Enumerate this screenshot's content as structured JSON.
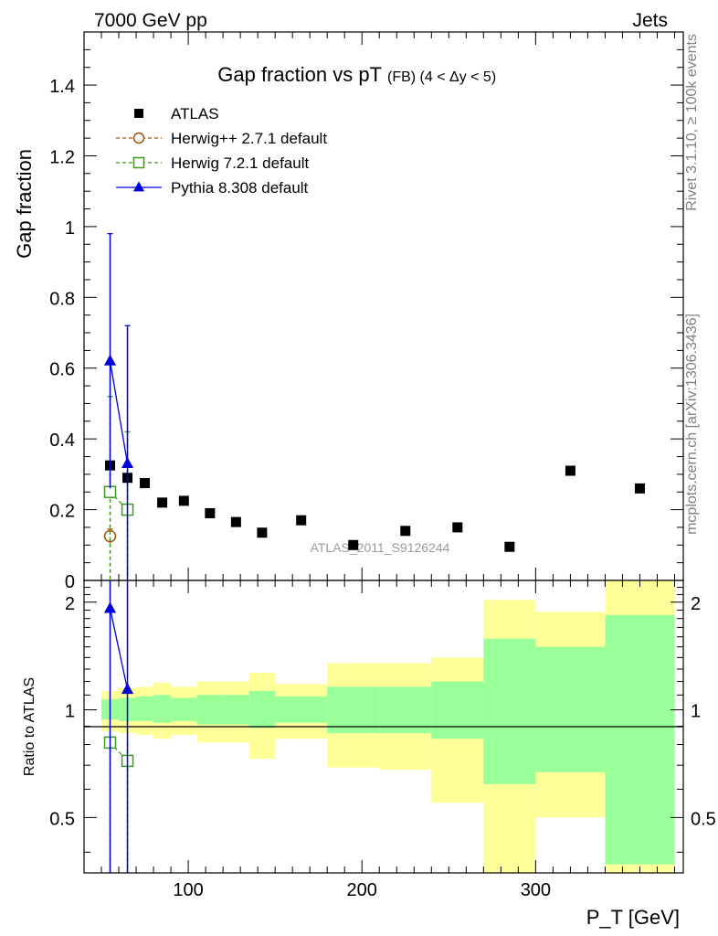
{
  "header": {
    "energy_label": "7000 GeV pp",
    "process_label": "Jets"
  },
  "side_labels": {
    "rivet": "Rivet 3.1.10, ≥ 100k events",
    "mcplots": "mcplots.cern.ch [arXiv:1306.3436]"
  },
  "watermark": "ATLAS_2011_S9126244",
  "chart_data": [
    {
      "type": "scatter",
      "title_main": "Gap fraction vs pT",
      "title_sub": "(FB)  (4 < Δy < 5)",
      "ylabel": "Gap fraction",
      "xlim": [
        40,
        385
      ],
      "ylim": [
        0,
        1.55
      ],
      "yticks": [
        {
          "v": 0,
          "label": "0"
        },
        {
          "v": 0.2,
          "label": "0.2"
        },
        {
          "v": 0.4,
          "label": "0.4"
        },
        {
          "v": 0.6,
          "label": "0.6"
        },
        {
          "v": 0.8,
          "label": "0.8"
        },
        {
          "v": 1.0,
          "label": "1"
        },
        {
          "v": 1.2,
          "label": "1.2"
        },
        {
          "v": 1.4,
          "label": "1.4"
        }
      ],
      "legend": [
        {
          "name": "ATLAS",
          "marker": "square-filled",
          "color": "#000000"
        },
        {
          "name": "Herwig++ 2.7.1 default",
          "marker": "circle-open",
          "color": "#a0520a"
        },
        {
          "name": "Herwig 7.2.1 default",
          "marker": "square-open",
          "color": "#3a9a1a"
        },
        {
          "name": "Pythia 8.308 default",
          "marker": "triangle-filled",
          "color": "#0000dd"
        }
      ],
      "series": [
        {
          "name": "ATLAS",
          "x": [
            55,
            65,
            75,
            85,
            97.5,
            112.5,
            127.5,
            142.5,
            165,
            195,
            225,
            255,
            285,
            320,
            360
          ],
          "y": [
            0.325,
            0.29,
            0.275,
            0.22,
            0.225,
            0.19,
            0.165,
            0.135,
            0.17,
            0.1,
            0.14,
            0.15,
            0.095,
            0.31,
            0.26
          ]
        },
        {
          "name": "Herwig++ 2.7.1 default",
          "x": [
            55
          ],
          "y": [
            0.125
          ],
          "err": [
            0.02
          ]
        },
        {
          "name": "Herwig 7.2.1 default",
          "x": [
            55,
            65
          ],
          "y": [
            0.25,
            0.2
          ],
          "err": [
            0.27,
            0.22
          ]
        },
        {
          "name": "Pythia 8.308 default",
          "x": [
            55,
            65
          ],
          "y": [
            0.62,
            0.33
          ],
          "err": [
            0.36,
            0.39
          ]
        }
      ]
    },
    {
      "type": "scatter",
      "ylabel": "Ratio to ATLAS",
      "xlabel": "P_T [GeV]",
      "xlim": [
        40,
        385
      ],
      "ylim": [
        0.35,
        2.3
      ],
      "yticks": [
        {
          "v": 0.5,
          "label": "0.5"
        },
        {
          "v": 1,
          "label": "1"
        },
        {
          "v": 2,
          "label": "2"
        }
      ],
      "xticks": [
        {
          "v": 100,
          "label": "100"
        },
        {
          "v": 200,
          "label": "200"
        },
        {
          "v": 300,
          "label": "300"
        }
      ],
      "bands": [
        {
          "x0": 50,
          "x1": 60,
          "g_lo": 0.94,
          "g_hi": 1.07,
          "y_lo": 0.87,
          "y_hi": 1.13
        },
        {
          "x0": 60,
          "x1": 70,
          "g_lo": 0.93,
          "g_hi": 1.08,
          "y_lo": 0.86,
          "y_hi": 1.15
        },
        {
          "x0": 70,
          "x1": 80,
          "g_lo": 0.93,
          "g_hi": 1.09,
          "y_lo": 0.85,
          "y_hi": 1.16
        },
        {
          "x0": 80,
          "x1": 90,
          "g_lo": 0.92,
          "g_hi": 1.1,
          "y_lo": 0.83,
          "y_hi": 1.19
        },
        {
          "x0": 90,
          "x1": 105,
          "g_lo": 0.93,
          "g_hi": 1.08,
          "y_lo": 0.85,
          "y_hi": 1.16
        },
        {
          "x0": 105,
          "x1": 120,
          "g_lo": 0.91,
          "g_hi": 1.1,
          "y_lo": 0.81,
          "y_hi": 1.2
        },
        {
          "x0": 120,
          "x1": 135,
          "g_lo": 0.91,
          "g_hi": 1.1,
          "y_lo": 0.81,
          "y_hi": 1.2
        },
        {
          "x0": 135,
          "x1": 150,
          "g_lo": 0.89,
          "g_hi": 1.13,
          "y_lo": 0.73,
          "y_hi": 1.27
        },
        {
          "x0": 150,
          "x1": 180,
          "g_lo": 0.92,
          "g_hi": 1.09,
          "y_lo": 0.83,
          "y_hi": 1.18
        },
        {
          "x0": 180,
          "x1": 210,
          "g_lo": 0.86,
          "g_hi": 1.16,
          "y_lo": 0.69,
          "y_hi": 1.35
        },
        {
          "x0": 210,
          "x1": 240,
          "g_lo": 0.86,
          "g_hi": 1.16,
          "y_lo": 0.68,
          "y_hi": 1.35
        },
        {
          "x0": 240,
          "x1": 270,
          "g_lo": 0.83,
          "g_hi": 1.2,
          "y_lo": 0.55,
          "y_hi": 1.4
        },
        {
          "x0": 270,
          "x1": 300,
          "g_lo": 0.62,
          "g_hi": 1.58,
          "y_lo": 0.35,
          "y_hi": 2.03
        },
        {
          "x0": 300,
          "x1": 340,
          "g_lo": 0.67,
          "g_hi": 1.5,
          "y_lo": 0.5,
          "y_hi": 1.88
        },
        {
          "x0": 340,
          "x1": 380,
          "g_lo": 0.37,
          "g_hi": 1.84,
          "y_lo": 0.35,
          "y_hi": 2.3
        }
      ],
      "series": [
        {
          "name": "Herwig 7.2.1 default",
          "x": [
            55,
            65
          ],
          "y": [
            0.81,
            0.72
          ]
        },
        {
          "name": "Pythia 8.308 default",
          "x": [
            55,
            65
          ],
          "y": [
            1.92,
            1.14
          ]
        }
      ]
    }
  ]
}
